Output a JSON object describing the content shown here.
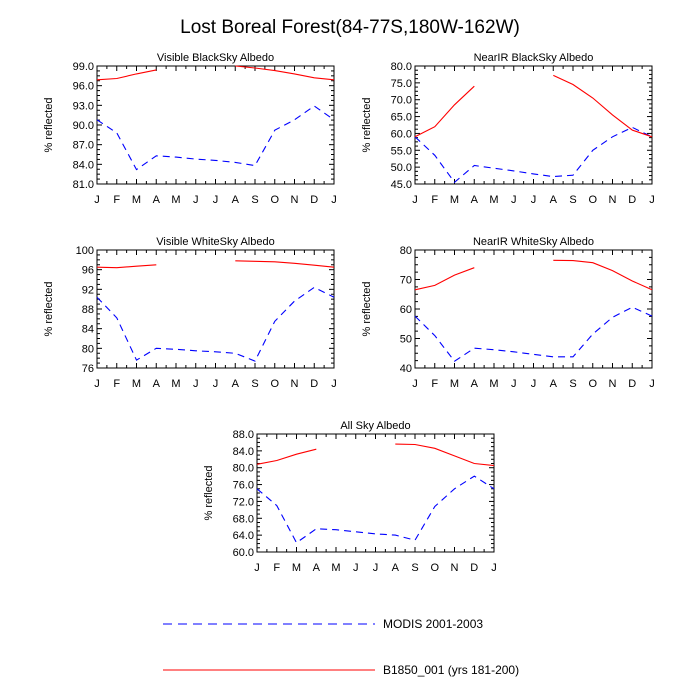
{
  "title": "Lost Boreal Forest(84-77S,180W-162W)",
  "month_labels": [
    "J",
    "F",
    "M",
    "A",
    "M",
    "J",
    "J",
    "A",
    "S",
    "O",
    "N",
    "D",
    "J"
  ],
  "legend": {
    "modis": "MODIS 2001-2003",
    "model": "B1850_001 (yrs 181-200)"
  },
  "colors": {
    "modis": "#0000ff",
    "model": "#ff0000"
  },
  "chart_data": [
    {
      "type": "line",
      "title": "Visible BlackSky Albedo",
      "xlabel": "",
      "ylabel": "% reflected",
      "ylim": [
        81,
        99
      ],
      "yticks": [
        81,
        84,
        87,
        90,
        93,
        96,
        99
      ],
      "ytick_labels": [
        "81.0",
        "84.0",
        "87.0",
        "90.0",
        "93.0",
        "96.0",
        "99.0"
      ],
      "x": [
        1,
        2,
        3,
        4,
        5,
        6,
        7,
        8,
        9,
        10,
        11,
        12,
        13
      ],
      "series": [
        {
          "name": "MODIS 2001-2003",
          "style": "dashed",
          "values": [
            90.8,
            88.8,
            83.2,
            85.3,
            85.1,
            84.8,
            84.6,
            84.3,
            83.8,
            89.2,
            90.8,
            92.9,
            90.8
          ]
        },
        {
          "name": "B1850_001 (yrs 181-200)",
          "style": "solid",
          "values": [
            96.9,
            97.1,
            97.8,
            98.4,
            null,
            null,
            null,
            99.0,
            98.7,
            98.3,
            97.8,
            97.2,
            96.9
          ]
        }
      ]
    },
    {
      "type": "line",
      "title": "NearIR BlackSky Albedo",
      "xlabel": "",
      "ylabel": "% reflected",
      "ylim": [
        45,
        80
      ],
      "yticks": [
        45,
        50,
        55,
        60,
        65,
        70,
        75,
        80
      ],
      "ytick_labels": [
        "45.0",
        "50.0",
        "55.0",
        "60.0",
        "65.0",
        "70.0",
        "75.0",
        "80.0"
      ],
      "x": [
        1,
        2,
        3,
        4,
        5,
        6,
        7,
        8,
        9,
        10,
        11,
        12,
        13
      ],
      "series": [
        {
          "name": "MODIS 2001-2003",
          "style": "dashed",
          "values": [
            59.0,
            53.5,
            45.5,
            50.5,
            49.7,
            48.9,
            48.0,
            47.2,
            47.6,
            55.0,
            59.0,
            61.8,
            59.0
          ]
        },
        {
          "name": "B1850_001 (yrs 181-200)",
          "style": "solid",
          "values": [
            59.0,
            62.0,
            68.5,
            74.0,
            null,
            null,
            null,
            77.2,
            74.5,
            70.5,
            65.5,
            61.0,
            59.0
          ]
        }
      ]
    },
    {
      "type": "line",
      "title": "Visible WhiteSky Albedo",
      "xlabel": "",
      "ylabel": "% reflected",
      "ylim": [
        76,
        100
      ],
      "yticks": [
        76,
        80,
        84,
        88,
        92,
        96,
        100
      ],
      "ytick_labels": [
        "76",
        "80",
        "84",
        "88",
        "92",
        "96",
        "100"
      ],
      "x": [
        1,
        2,
        3,
        4,
        5,
        6,
        7,
        8,
        9,
        10,
        11,
        12,
        13
      ],
      "series": [
        {
          "name": "MODIS 2001-2003",
          "style": "dashed",
          "values": [
            90.4,
            86.2,
            77.6,
            80.0,
            79.8,
            79.5,
            79.3,
            79.0,
            77.4,
            85.5,
            89.6,
            92.4,
            90.4
          ]
        },
        {
          "name": "B1850_001 (yrs 181-200)",
          "style": "solid",
          "values": [
            96.5,
            96.4,
            96.7,
            97.0,
            null,
            null,
            null,
            97.8,
            97.7,
            97.6,
            97.3,
            96.9,
            96.5
          ]
        }
      ]
    },
    {
      "type": "line",
      "title": "NearIR WhiteSky Albedo",
      "xlabel": "",
      "ylabel": "% reflected",
      "ylim": [
        40,
        80
      ],
      "yticks": [
        40,
        50,
        60,
        70,
        80
      ],
      "ytick_labels": [
        "40",
        "50",
        "60",
        "70",
        "80"
      ],
      "x": [
        1,
        2,
        3,
        4,
        5,
        6,
        7,
        8,
        9,
        10,
        11,
        12,
        13
      ],
      "series": [
        {
          "name": "MODIS 2001-2003",
          "style": "dashed",
          "values": [
            57.6,
            51.0,
            42.3,
            46.7,
            46.2,
            45.5,
            44.6,
            43.8,
            43.8,
            51.5,
            57.2,
            60.6,
            57.6
          ]
        },
        {
          "name": "B1850_001 (yrs 181-200)",
          "style": "solid",
          "values": [
            66.5,
            68.0,
            71.5,
            74.0,
            null,
            null,
            null,
            76.5,
            76.4,
            75.7,
            73.0,
            69.5,
            66.5
          ]
        }
      ]
    },
    {
      "type": "line",
      "title": "All Sky Albedo",
      "xlabel": "",
      "ylabel": "% reflected",
      "ylim": [
        60,
        88
      ],
      "yticks": [
        60,
        64,
        68,
        72,
        76,
        80,
        84,
        88
      ],
      "ytick_labels": [
        "60.0",
        "64.0",
        "68.0",
        "72.0",
        "76.0",
        "80.0",
        "84.0",
        "88.0"
      ],
      "x": [
        1,
        2,
        3,
        4,
        5,
        6,
        7,
        8,
        9,
        10,
        11,
        12,
        13
      ],
      "series": [
        {
          "name": "MODIS 2001-2003",
          "style": "dashed",
          "values": [
            75.0,
            71.0,
            62.2,
            65.5,
            65.3,
            64.8,
            64.3,
            64.0,
            62.8,
            70.8,
            75.0,
            78.0,
            75.0
          ]
        },
        {
          "name": "B1850_001 (yrs 181-200)",
          "style": "solid",
          "values": [
            80.8,
            81.7,
            83.2,
            84.4,
            null,
            null,
            null,
            85.6,
            85.5,
            84.6,
            82.8,
            81.0,
            80.5
          ]
        }
      ]
    }
  ]
}
